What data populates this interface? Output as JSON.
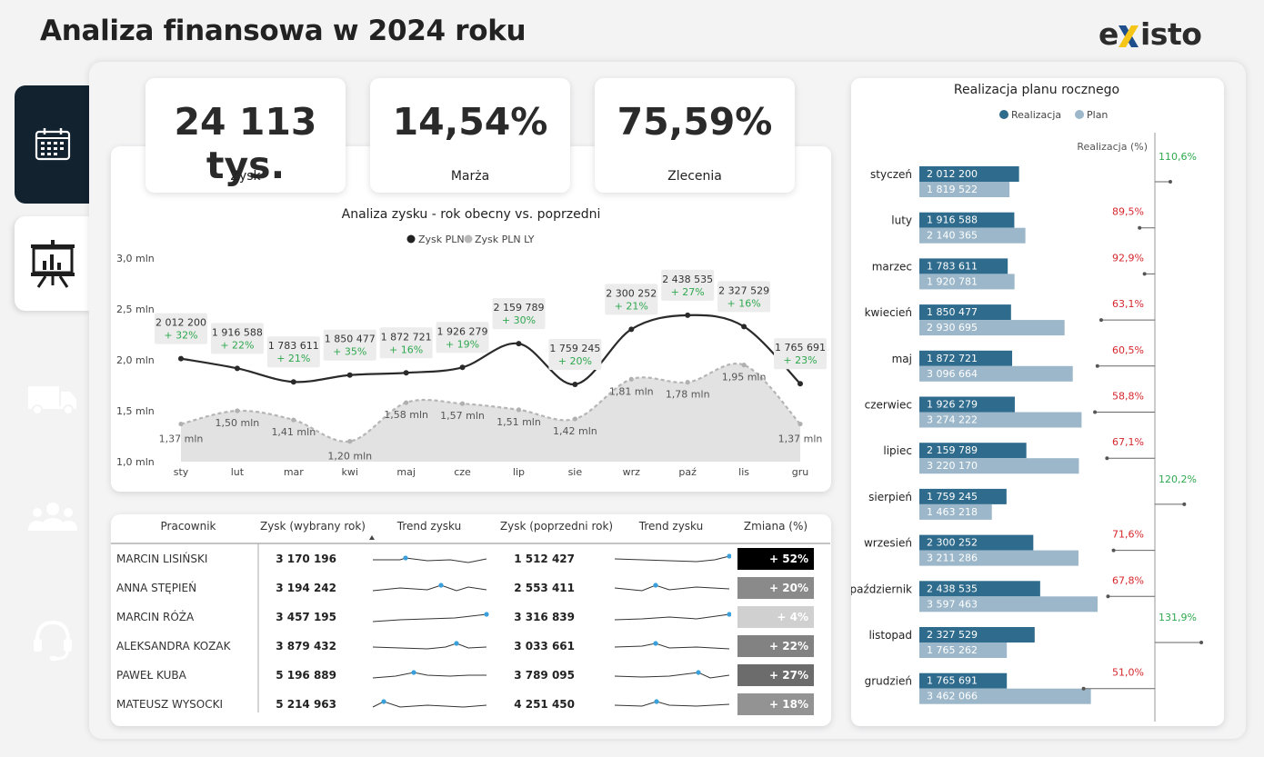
{
  "header": {
    "title": "Analiza finansowa w 2024 roku",
    "logo": "existo"
  },
  "sidebar": {
    "items": [
      "calendar-icon",
      "presentation-chart-icon",
      "truck-icon",
      "people-icon",
      "headset-icon"
    ]
  },
  "kpis": [
    {
      "value": "24 113 tys.",
      "label": "Zysk"
    },
    {
      "value": "14,54%",
      "label": "Marża"
    },
    {
      "value": "75,59%",
      "label": "Zlecenia"
    }
  ],
  "colors": {
    "dark": "#222222",
    "ly": "#b8b8b8",
    "realizacja": "#2f6b8c",
    "plan": "#9bb7c9",
    "green": "#2fa84f",
    "red": "#d6262c"
  },
  "chart_data": [
    {
      "type": "line",
      "title": "Analiza zysku - rok obecny vs. poprzedni",
      "legend": [
        "Zysk PLN",
        "Zysk PLN LY"
      ],
      "categories": [
        "sty",
        "lut",
        "mar",
        "kwi",
        "maj",
        "cze",
        "lip",
        "sie",
        "wrz",
        "paź",
        "lis",
        "gru"
      ],
      "y_ticks": [
        "3,0 mln",
        "2,5 mln",
        "2,0 mln",
        "1,5 mln",
        "1,0 mln"
      ],
      "ylim": [
        1.0,
        3.0
      ],
      "series": [
        {
          "name": "Zysk PLN",
          "values": [
            2012200,
            1916588,
            1783611,
            1850477,
            1872721,
            1926279,
            2159789,
            1759245,
            2300252,
            2438535,
            2327529,
            1765691
          ],
          "labels": [
            "2 012 200",
            "1 916 588",
            "1 783 611",
            "1 850 477",
            "1 872 721",
            "1 926 279",
            "2 159 789",
            "1 759 245",
            "2 300 252",
            "2 438 535",
            "2 327 529",
            "1 765 691"
          ],
          "changes": [
            "+ 32%",
            "+ 22%",
            "+ 21%",
            "+ 35%",
            "+ 16%",
            "+ 19%",
            "+ 30%",
            "+ 20%",
            "+ 21%",
            "+ 27%",
            "+ 16%",
            "+ 23%"
          ]
        },
        {
          "name": "Zysk PLN LY",
          "values": [
            1370000,
            1500000,
            1410000,
            1200000,
            1580000,
            1570000,
            1510000,
            1420000,
            1810000,
            1780000,
            1950000,
            1370000
          ],
          "labels": [
            "1,37 mln",
            "1,50 mln",
            "1,41 mln",
            "1,20 mln",
            "1,58 mln",
            "1,57 mln",
            "1,51 mln",
            "1,42 mln",
            "1,81 mln",
            "1,78 mln",
            "1,95 mln",
            "1,37 mln"
          ]
        }
      ]
    },
    {
      "type": "bar",
      "title": "Realizacja planu rocznego",
      "legend": [
        "Realizacja",
        "Plan"
      ],
      "pct_header": "Realizacja (%)",
      "categories": [
        "styczeń",
        "luty",
        "marzec",
        "kwiecień",
        "maj",
        "czerwiec",
        "lipiec",
        "sierpień",
        "wrzesień",
        "październik",
        "listopad",
        "grudzień"
      ],
      "series": [
        {
          "name": "Realizacja",
          "values": [
            2012200,
            1916588,
            1783611,
            1850477,
            1872721,
            1926279,
            2159789,
            1759245,
            2300252,
            2438535,
            2327529,
            1765691
          ],
          "labels": [
            "2 012 200",
            "1 916 588",
            "1 783 611",
            "1 850 477",
            "1 872 721",
            "1 926 279",
            "2 159 789",
            "1 759 245",
            "2 300 252",
            "2 438 535",
            "2 327 529",
            "1 765 691"
          ]
        },
        {
          "name": "Plan",
          "values": [
            1819522,
            2140365,
            1920781,
            2930695,
            3096664,
            3274222,
            3220170,
            1463218,
            3211286,
            3597463,
            1765262,
            3462066
          ],
          "labels": [
            "1 819 522",
            "2 140 365",
            "1 920 781",
            "2 930 695",
            "3 096 664",
            "3 274 222",
            "3 220 170",
            "1 463 218",
            "3 211 286",
            "3 597 463",
            "1 765 262",
            "3 462 066"
          ]
        }
      ],
      "realizacja_pct": [
        110.6,
        89.5,
        92.9,
        63.1,
        60.5,
        58.8,
        67.1,
        120.2,
        71.6,
        67.8,
        131.9,
        51.0
      ],
      "realizacja_pct_labels": [
        "110,6%",
        "89,5%",
        "92,9%",
        "63,1%",
        "60,5%",
        "58,8%",
        "67,1%",
        "120,2%",
        "71,6%",
        "67,8%",
        "131,9%",
        "51,0%"
      ]
    }
  ],
  "table": {
    "headers": [
      "Pracownik",
      "Zysk (wybrany rok)",
      "Trend zysku",
      "Zysk (poprzedni rok)",
      "Trend zysku",
      "Zmiana (%)"
    ],
    "rows": [
      {
        "name": "MARCIN LISIŃSKI",
        "zysk": "3 170 196",
        "zysk_ly": "1 512 427",
        "change": "+ 52%",
        "change_pct": 52
      },
      {
        "name": "ANNA STĘPIEŃ",
        "zysk": "3 194 242",
        "zysk_ly": "2 553 411",
        "change": "+ 20%",
        "change_pct": 20
      },
      {
        "name": "MARCIN RÓŻA",
        "zysk": "3 457 195",
        "zysk_ly": "3 316 839",
        "change": "+ 4%",
        "change_pct": 4
      },
      {
        "name": "ALEKSANDRA KOZAK",
        "zysk": "3 879 432",
        "zysk_ly": "3 033 661",
        "change": "+ 22%",
        "change_pct": 22
      },
      {
        "name": "PAWEŁ KUBA",
        "zysk": "5 196 889",
        "zysk_ly": "3 789 095",
        "change": "+ 27%",
        "change_pct": 27
      },
      {
        "name": "MATEUSZ WYSOCKI",
        "zysk": "5 214 963",
        "zysk_ly": "4 251 450",
        "change": "+ 18%",
        "change_pct": 18
      }
    ]
  }
}
